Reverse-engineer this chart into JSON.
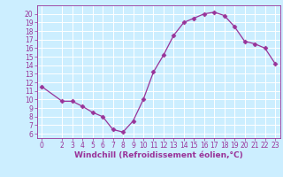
{
  "x": [
    0,
    2,
    3,
    4,
    5,
    6,
    7,
    8,
    9,
    10,
    11,
    12,
    13,
    14,
    15,
    16,
    17,
    18,
    19,
    20,
    21,
    22,
    23
  ],
  "y": [
    11.5,
    9.8,
    9.8,
    9.2,
    8.5,
    8.0,
    6.5,
    6.2,
    7.5,
    10.0,
    13.2,
    15.2,
    17.5,
    19.0,
    19.5,
    20.0,
    20.2,
    19.8,
    18.5,
    16.8,
    16.5,
    16.0,
    14.2
  ],
  "line_color": "#993399",
  "marker": "D",
  "marker_size": 2.5,
  "bg_color": "#cceeff",
  "grid_color": "#ffffff",
  "xlabel": "Windchill (Refroidissement éolien,°C)",
  "xlabel_color": "#993399",
  "xlabel_fontsize": 6.5,
  "tick_color": "#993399",
  "tick_fontsize": 5.5,
  "ylim": [
    5.5,
    21.0
  ],
  "xlim": [
    -0.5,
    23.5
  ],
  "yticks": [
    6,
    7,
    8,
    9,
    10,
    11,
    12,
    13,
    14,
    15,
    16,
    17,
    18,
    19,
    20
  ],
  "xticks": [
    0,
    2,
    3,
    4,
    5,
    6,
    7,
    8,
    9,
    10,
    11,
    12,
    13,
    14,
    15,
    16,
    17,
    18,
    19,
    20,
    21,
    22,
    23
  ]
}
